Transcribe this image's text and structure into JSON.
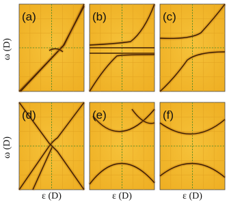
{
  "panels": [
    {
      "label": "(a)"
    },
    {
      "label": "(b)"
    },
    {
      "label": "(c)"
    },
    {
      "label": "(d)"
    },
    {
      "label": "(e)"
    },
    {
      "label": "(f)"
    }
  ],
  "y_axis_label": "ω (D)",
  "x_axis_label": "ε (D)"
}
